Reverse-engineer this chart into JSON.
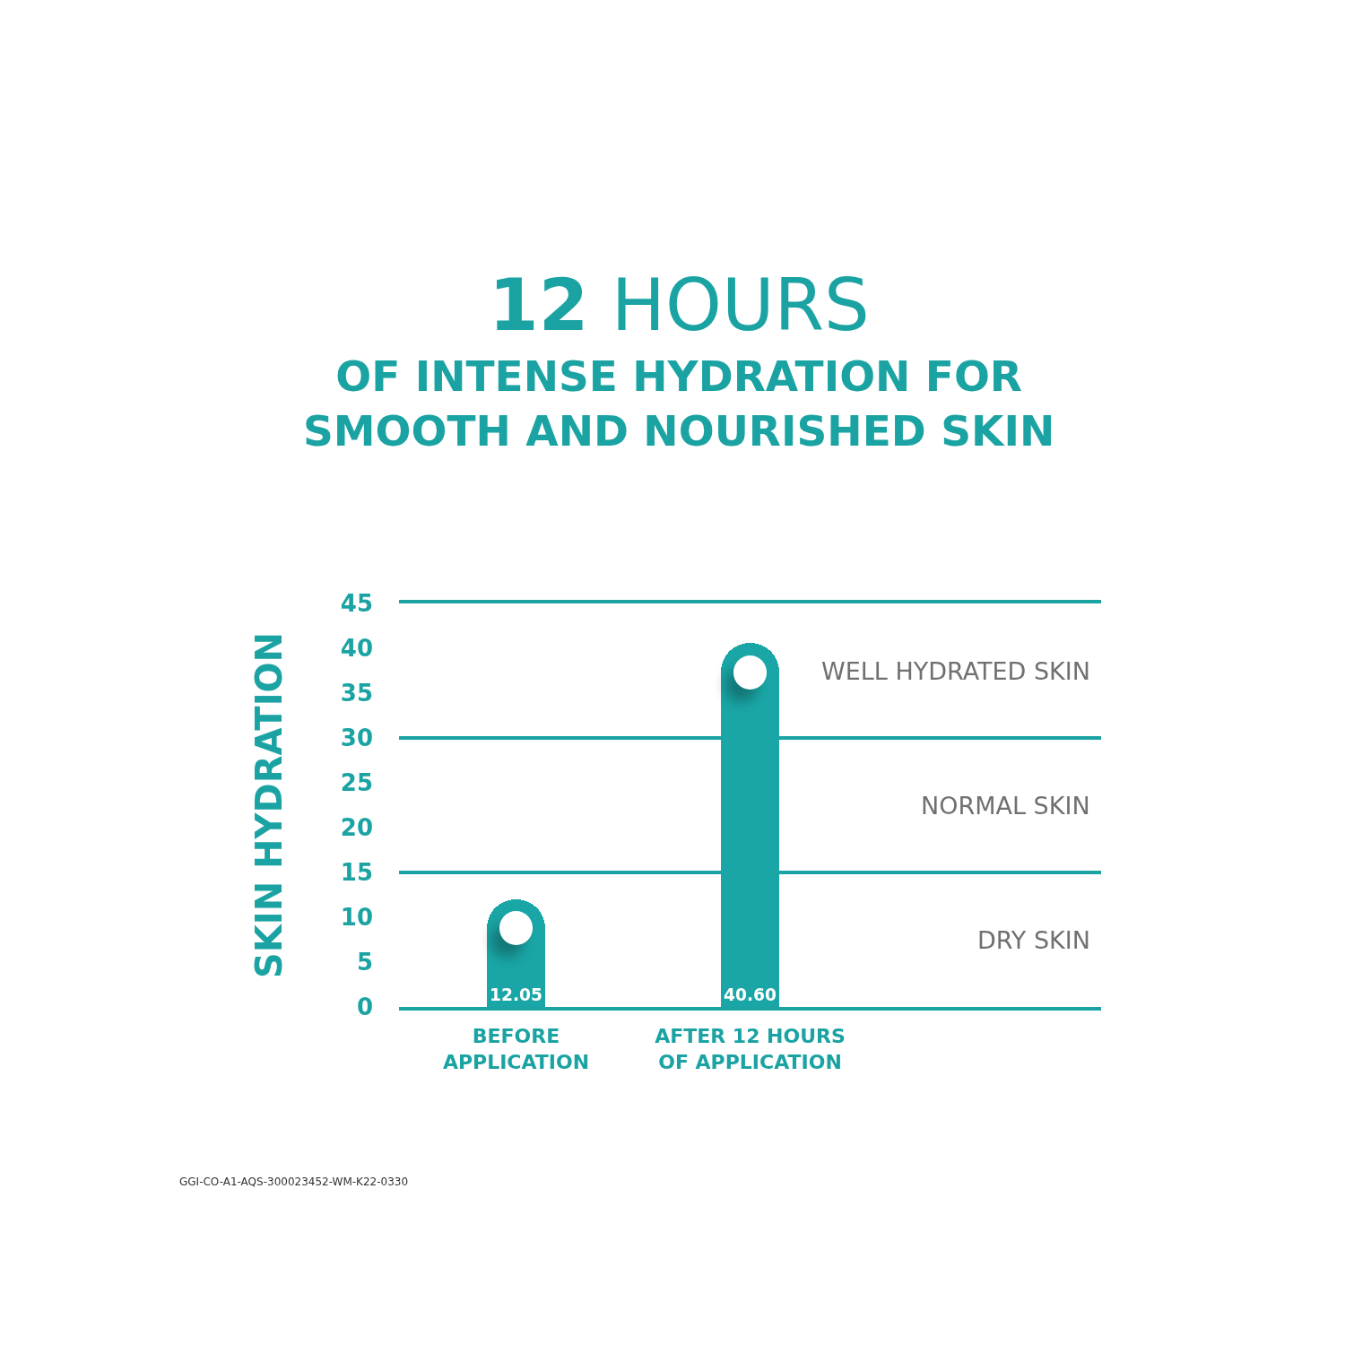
{
  "chart_data": {
    "type": "bar",
    "title": "12 HOURS",
    "subtitle": "OF INTENSE HYDRATION FOR SMOOTH AND NOURISHED SKIN",
    "ylabel": "SKIN HYDRATION",
    "categories": [
      "BEFORE APPLICATION",
      "AFTER 12 HOURS OF APPLICATION"
    ],
    "values": [
      12.05,
      40.6
    ],
    "value_labels": [
      "12.05",
      "40.60"
    ],
    "color": "#1aa6a6",
    "ylim": [
      0,
      45
    ],
    "yticks": [
      0,
      5,
      10,
      15,
      20,
      25,
      30,
      35,
      40,
      45
    ],
    "ref_lines": [
      {
        "axis": "y",
        "value": 15,
        "color": "#1ba3a3"
      },
      {
        "axis": "y",
        "value": 30,
        "color": "#1ba3a3"
      }
    ],
    "annotations": [
      "WELL HYDRATED SKIN",
      "NORMAL SKIN",
      "DRY SKIN",
      "GGI-CO-A1-AQS-300023452-WM-K22-0330"
    ]
  }
}
